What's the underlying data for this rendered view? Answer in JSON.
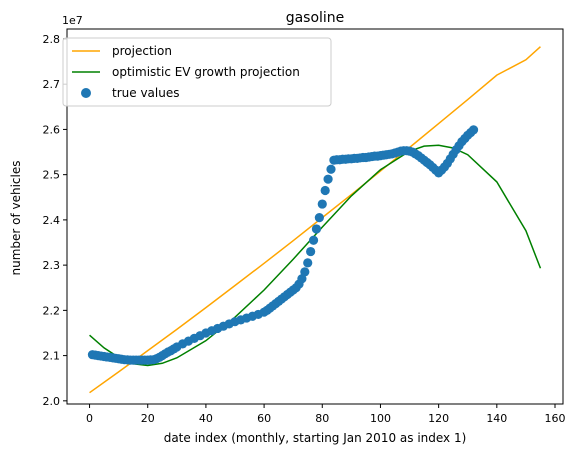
{
  "chart_data": {
    "type": "line",
    "title": "gasoline",
    "xlabel": "date index (monthly, starting Jan 2010 as index 1)",
    "ylabel": "number of vehicles",
    "y_offset_label": "1e7",
    "xlim": [
      -7.75,
      162.75
    ],
    "ylim": [
      19930000.0,
      28220000.0
    ],
    "x_ticks": [
      0,
      20,
      40,
      60,
      80,
      100,
      120,
      140,
      160
    ],
    "x_tick_labels": [
      "0",
      "20",
      "40",
      "60",
      "80",
      "100",
      "120",
      "140",
      "160"
    ],
    "y_ticks": [
      20000000.0,
      21000000.0,
      22000000.0,
      23000000.0,
      24000000.0,
      25000000.0,
      26000000.0,
      27000000.0,
      28000000.0
    ],
    "y_tick_labels": [
      "2.0",
      "2.1",
      "2.2",
      "2.3",
      "2.4",
      "2.5",
      "2.6",
      "2.7",
      "2.8"
    ],
    "grid": false,
    "legend_position": "top-left",
    "legend": [
      {
        "label": "projection",
        "kind": "line",
        "color": "#ffa500"
      },
      {
        "label": "optimistic EV growth projection",
        "kind": "line",
        "color": "#008000"
      },
      {
        "label": "true values",
        "kind": "marker",
        "color": "#1f77b4"
      }
    ],
    "series": [
      {
        "name": "projection",
        "kind": "line",
        "color": "#ffa500",
        "x": [
          0,
          10,
          20,
          30,
          40,
          50,
          60,
          70,
          80,
          90,
          100,
          110,
          120,
          130,
          140,
          150,
          155
        ],
        "y": [
          20180000,
          20640000,
          21110000,
          21580000,
          22060000,
          22550000,
          23040000,
          23540000,
          24050000,
          24560000,
          25080000,
          25600000,
          26130000,
          26660000,
          27200000,
          27540000,
          27830000
        ]
      },
      {
        "name": "optimistic EV growth projection",
        "kind": "line",
        "color": "#008000",
        "x": [
          0,
          5,
          10,
          15,
          20,
          25,
          30,
          40,
          50,
          60,
          70,
          80,
          90,
          100,
          110,
          115,
          120,
          125,
          130,
          140,
          150,
          155
        ],
        "y": [
          21450000,
          21170000,
          20960000,
          20820000,
          20780000,
          20830000,
          20950000,
          21330000,
          21850000,
          22450000,
          23130000,
          23840000,
          24530000,
          25110000,
          25520000,
          25630000,
          25650000,
          25590000,
          25440000,
          24840000,
          23760000,
          22930000
        ]
      },
      {
        "name": "true values",
        "kind": "scatter",
        "color": "#1f77b4",
        "x": [
          1,
          2,
          3,
          4,
          5,
          6,
          7,
          8,
          9,
          10,
          11,
          12,
          13,
          14,
          15,
          16,
          17,
          18,
          19,
          20,
          21,
          22,
          23,
          24,
          25,
          26,
          27,
          28,
          29,
          30,
          32,
          34,
          36,
          38,
          40,
          42,
          44,
          46,
          48,
          50,
          52,
          54,
          56,
          58,
          60,
          61,
          62,
          63,
          64,
          65,
          66,
          67,
          68,
          69,
          70,
          71,
          72,
          73,
          74,
          75,
          76,
          77,
          78,
          79,
          80,
          81,
          82,
          83,
          84,
          85,
          86,
          87,
          88,
          89,
          90,
          91,
          92,
          93,
          94,
          95,
          96,
          97,
          98,
          99,
          100,
          101,
          102,
          103,
          104,
          105,
          106,
          107,
          108,
          109,
          110,
          111,
          112,
          113,
          114,
          115,
          116,
          117,
          118,
          119,
          120,
          121,
          122,
          123,
          124,
          125,
          126,
          127,
          128,
          129,
          130,
          131,
          132
        ],
        "y": [
          21020000,
          21010000,
          21000000,
          20990000,
          20980000,
          20970000,
          20960000,
          20950000,
          20940000,
          20930000,
          20920000,
          20910000,
          20905000,
          20900000,
          20900000,
          20900000,
          20900000,
          20900000,
          20900000,
          20900000,
          20905000,
          20910000,
          20930000,
          20960000,
          21000000,
          21040000,
          21080000,
          21110000,
          21150000,
          21190000,
          21260000,
          21320000,
          21380000,
          21440000,
          21500000,
          21550000,
          21600000,
          21650000,
          21700000,
          21750000,
          21790000,
          21830000,
          21870000,
          21910000,
          21960000,
          22000000,
          22050000,
          22100000,
          22150000,
          22200000,
          22250000,
          22300000,
          22350000,
          22400000,
          22450000,
          22500000,
          22580000,
          22700000,
          22850000,
          23050000,
          23300000,
          23550000,
          23800000,
          24050000,
          24350000,
          24650000,
          24900000,
          25120000,
          25320000,
          25330000,
          25330000,
          25340000,
          25340000,
          25350000,
          25350000,
          25360000,
          25360000,
          25370000,
          25380000,
          25380000,
          25390000,
          25400000,
          25410000,
          25410000,
          25420000,
          25430000,
          25440000,
          25450000,
          25460000,
          25480000,
          25500000,
          25520000,
          25530000,
          25530000,
          25520000,
          25500000,
          25460000,
          25420000,
          25370000,
          25320000,
          25270000,
          25220000,
          25160000,
          25100000,
          25040000,
          25100000,
          25170000,
          25250000,
          25350000,
          25450000,
          25550000,
          25640000,
          25730000,
          25800000,
          25870000,
          25930000,
          25990000
        ]
      }
    ]
  }
}
